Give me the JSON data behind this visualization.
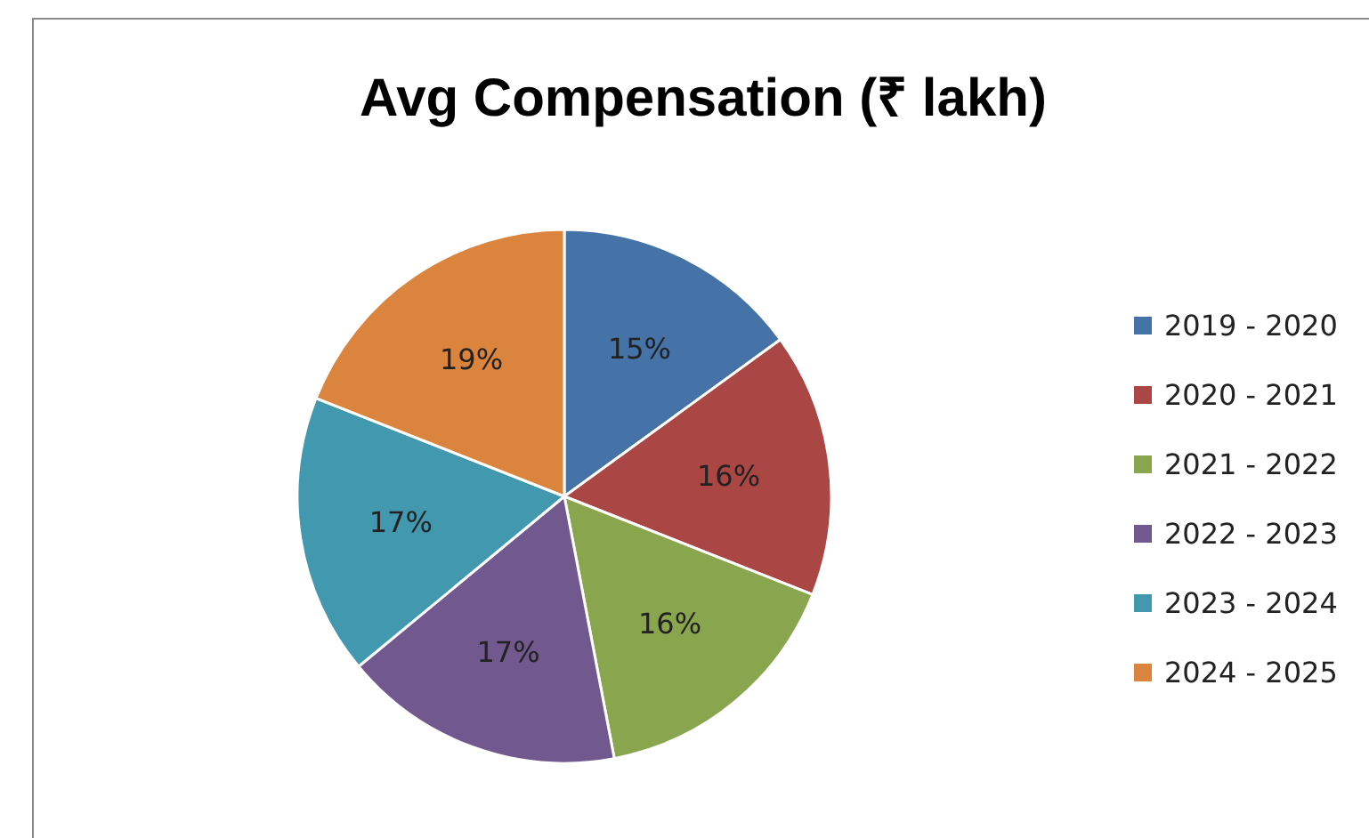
{
  "chart_data": {
    "type": "pie",
    "title": "Avg Compensation (₹ lakh)",
    "categories": [
      "2019 - 2020",
      "2020 - 2021",
      "2021 - 2022",
      "2022 - 2023",
      "2023 - 2024",
      "2024 - 2025"
    ],
    "values": [
      15,
      16,
      16,
      17,
      17,
      19
    ],
    "value_labels": [
      "15%",
      "16%",
      "16%",
      "17%",
      "17%",
      "19%"
    ],
    "colors": [
      "#4572a7",
      "#aa4643",
      "#89a54e",
      "#71588f",
      "#4198af",
      "#db843d"
    ],
    "legend": "right"
  }
}
